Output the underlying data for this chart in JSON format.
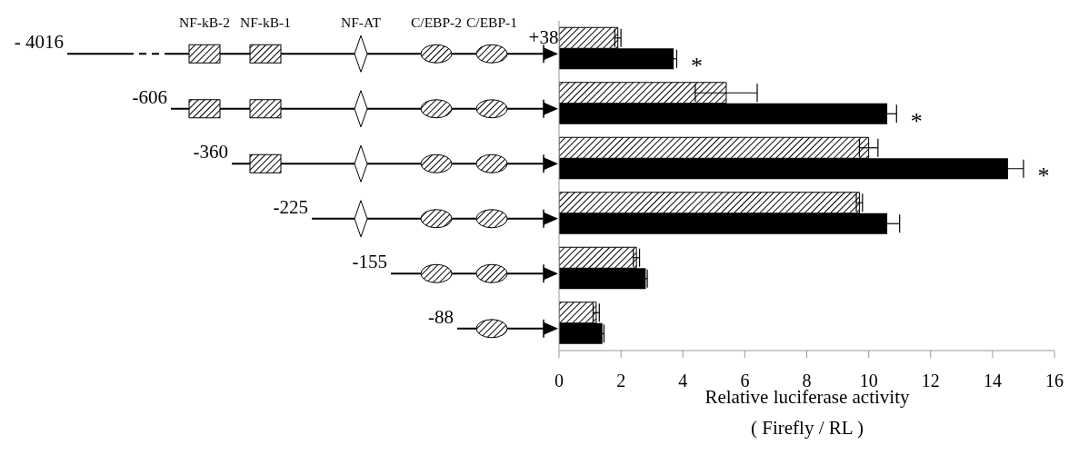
{
  "chart_data": {
    "type": "bar",
    "orientation": "horizontal",
    "categories": [
      null,
      null,
      null,
      null,
      null,
      null
    ],
    "series": [
      {
        "color": "#000000",
        "values": [
          1.9,
          5.4,
          10.0,
          9.7,
          2.5,
          1.2
        ],
        "errors": [
          0.1,
          1.0,
          0.3,
          0.1,
          0.1,
          0.1
        ]
      },
      {
        "color": "#000000",
        "values": [
          3.7,
          10.6,
          14.5,
          10.6,
          2.8,
          1.4
        ],
        "errors": [
          0.1,
          0.3,
          0.5,
          0.4,
          0.05,
          0.05
        ]
      }
    ],
    "xlim": [
      0,
      16
    ],
    "xticks": [
      0,
      2,
      4,
      6,
      8,
      10,
      12,
      14,
      16
    ],
    "xlabel": "Relative luciferase activity\n( Firefly / RL )",
    "grid": false,
    "annotations": [
      "NF-kB-2",
      "NF-kB-1",
      "NF-AT",
      "C/EBP-2",
      "C/EBP-1",
      "+38",
      "- 4016",
      "-606",
      "-360",
      "-225",
      "-155",
      "-88",
      "*",
      "*",
      "*"
    ]
  }
}
